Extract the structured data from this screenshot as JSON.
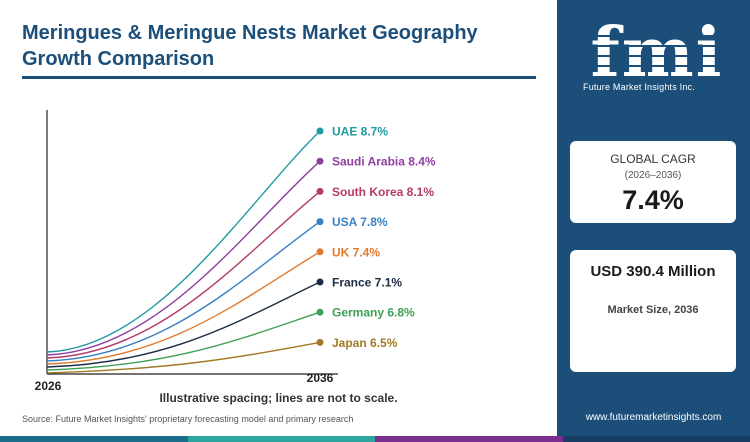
{
  "header": {
    "title_line1": "Meringues & Meringue Nests Market Geography",
    "title_line2": "Growth Comparison"
  },
  "chart_data": {
    "type": "line",
    "title": "Meringues & Meringue Nests Market Geography Growth Comparison",
    "x": [
      2026,
      2036
    ],
    "x_tick_labels": [
      "2026",
      "2036"
    ],
    "series": [
      {
        "name": "UAE",
        "cagr": 8.7,
        "label": "UAE 8.7%",
        "color": "#1e9aa0"
      },
      {
        "name": "Saudi Arabia",
        "cagr": 8.4,
        "label": "Saudi Arabia 8.4%",
        "color": "#8e3fa0"
      },
      {
        "name": "South Korea",
        "cagr": 8.1,
        "label": "South Korea 8.1%",
        "color": "#b53a68"
      },
      {
        "name": "USA",
        "cagr": 7.8,
        "label": "USA 7.8%",
        "color": "#3a7fc1"
      },
      {
        "name": "UK",
        "cagr": 7.4,
        "label": "UK 7.4%",
        "color": "#e07a2e"
      },
      {
        "name": "France",
        "cagr": 7.1,
        "label": "France 7.1%",
        "color": "#1c2b44"
      },
      {
        "name": "Germany",
        "cagr": 6.8,
        "label": "Germany 6.8%",
        "color": "#3ea055"
      },
      {
        "name": "Japan",
        "cagr": 6.5,
        "label": "Japan 6.5%",
        "color": "#a27a24"
      }
    ],
    "note": "Illustrative spacing; lines are not to scale."
  },
  "footer": {
    "source": "Source: Future Market Insights' proprietary forecasting model and primary research",
    "website": "www.futuremarketinsights.com"
  },
  "brand": {
    "logo_text": "fmi",
    "logo_subtitle": "Future Market Insights Inc."
  },
  "cagr_card": {
    "label": "GLOBAL CAGR",
    "period": "(2026–2036)",
    "value": "7.4%"
  },
  "market_card": {
    "value": "USD 390.4 Million",
    "label": "Market Size, 2036"
  },
  "colors": {
    "panel": "#1b4f7a",
    "title": "#1b4f7a"
  }
}
